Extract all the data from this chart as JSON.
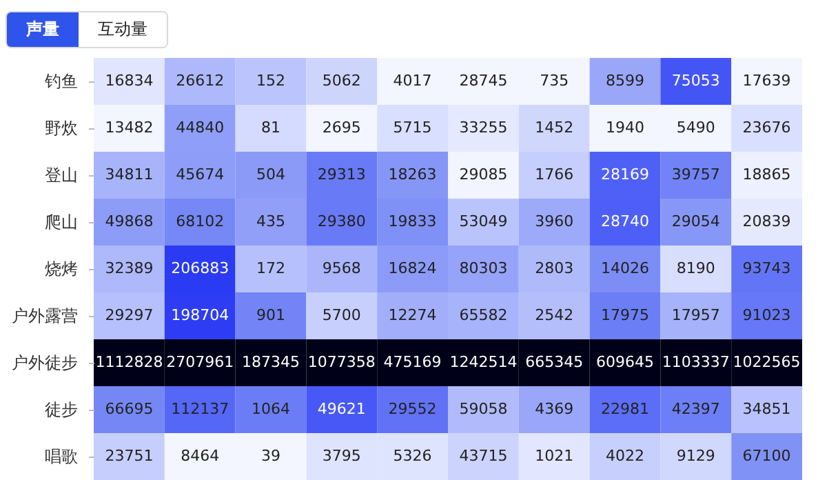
{
  "chart_data": {
    "type": "heatmap",
    "annotations": [
      "声量",
      "互动量"
    ],
    "categories": [
      null,
      null,
      null,
      null,
      null,
      null,
      null,
      null,
      null,
      null
    ],
    "y_categories": [
      "钓鱼",
      "野炊",
      "登山",
      "爬山",
      "烧烤",
      "户外露营",
      "户外徒步",
      "徒步",
      "唱歌"
    ],
    "cells": [
      [
        16834,
        26612,
        152,
        5062,
        4017,
        28745,
        735,
        8599,
        75053,
        17639
      ],
      [
        13482,
        44840,
        81,
        2695,
        5715,
        33255,
        1452,
        1940,
        5490,
        23676
      ],
      [
        34811,
        45674,
        504,
        29313,
        18263,
        29085,
        1766,
        28169,
        39757,
        18865
      ],
      [
        49868,
        68102,
        435,
        29380,
        19833,
        53049,
        3960,
        28740,
        29054,
        20839
      ],
      [
        32389,
        206883,
        172,
        9568,
        16824,
        80303,
        2803,
        14026,
        8190,
        93743
      ],
      [
        29297,
        198704,
        901,
        5700,
        12274,
        65582,
        2542,
        17975,
        17957,
        91023
      ],
      [
        1112828,
        2707961,
        187345,
        1077358,
        475169,
        1242514,
        665345,
        609645,
        1103337,
        1022565
      ],
      [
        66695,
        112137,
        1064,
        49621,
        29552,
        59058,
        4369,
        22981,
        42397,
        34851
      ],
      [
        23751,
        8464,
        39,
        3795,
        5326,
        43715,
        1021,
        4022,
        9129,
        67100
      ]
    ],
    "data_labels": true
  }
}
